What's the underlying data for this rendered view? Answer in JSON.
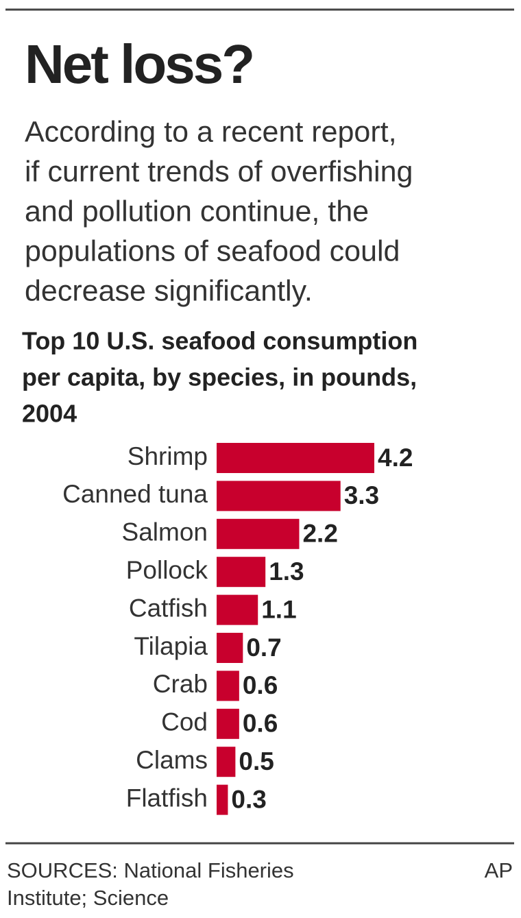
{
  "chart_data": {
    "type": "bar",
    "orientation": "horizontal",
    "title": "Net loss?",
    "description": [
      "According to a recent report,",
      "if current trends of overfishing",
      "and pollution continue, the",
      "populations of seafood could",
      "decrease significantly."
    ],
    "subtitle": [
      "Top 10 U.S. seafood consumption",
      "per capita, by species, in pounds,",
      "2004"
    ],
    "categories": [
      "Shrimp",
      "Canned tuna",
      "Salmon",
      "Pollock",
      "Catfish",
      "Tilapia",
      "Crab",
      "Cod",
      "Clams",
      "Flatfish"
    ],
    "values": [
      4.2,
      3.3,
      2.2,
      1.3,
      1.1,
      0.7,
      0.6,
      0.6,
      0.5,
      0.3
    ],
    "color": "#c8002d",
    "sources": [
      "SOURCES: National Fisheries",
      "Institute; Science"
    ],
    "credit": "AP"
  }
}
